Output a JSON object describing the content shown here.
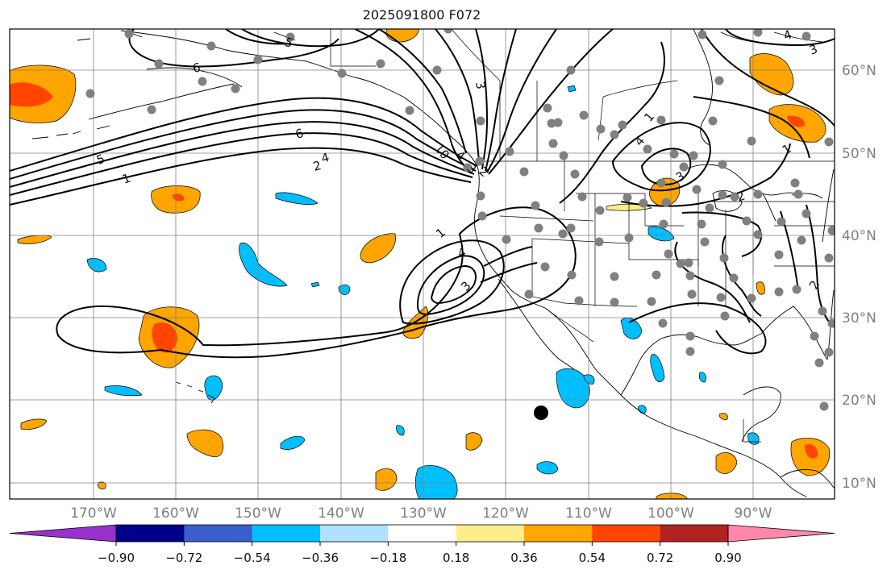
{
  "title": "2025091800 F072",
  "map": {
    "lon_labels": [
      "170°W",
      "160°W",
      "150°W",
      "140°W",
      "130°W",
      "120°W",
      "110°W",
      "100°W",
      "90°W"
    ],
    "lat_labels": [
      "60°N",
      "50°N",
      "40°N",
      "30°N",
      "20°N",
      "10°N"
    ],
    "contour_labels": [
      "6",
      "5",
      "6",
      "5",
      "4",
      "2",
      "1",
      "3",
      "10",
      "4",
      "3",
      "2",
      "1",
      "3",
      "4",
      "1",
      "4",
      "3",
      "2",
      "1",
      "2",
      "4",
      "3"
    ]
  },
  "colorbar": {
    "tick_labels": [
      "−0.90",
      "−0.72",
      "−0.54",
      "−0.36",
      "−0.18",
      "0.18",
      "0.36",
      "0.54",
      "0.72",
      "0.90"
    ],
    "colors": [
      "#9932cc",
      "#00008b",
      "#3a5fcd",
      "#00bfff",
      "#b0e2ff",
      "#ffffff",
      "#ffec8b",
      "#ffa500",
      "#ff4500",
      "#b22222",
      "#ff88aa"
    ]
  }
}
